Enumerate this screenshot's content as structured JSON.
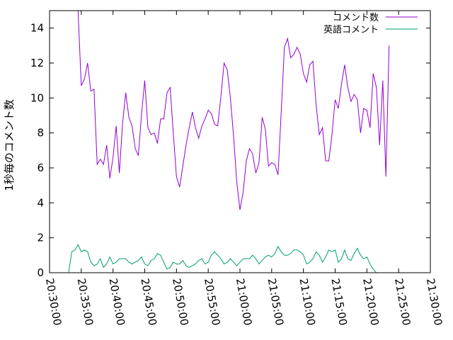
{
  "chart_data": {
    "type": "line",
    "title": "",
    "xlabel": "",
    "ylabel": "1秒毎のコメント数",
    "xlim": [
      "20:30:00",
      "21:30:00"
    ],
    "ylim": [
      0,
      15
    ],
    "yticks": [
      0,
      2,
      4,
      6,
      8,
      10,
      12,
      14
    ],
    "xticks": [
      "20:30:00",
      "20:35:00",
      "20:40:00",
      "20:45:00",
      "20:50:00",
      "20:55:00",
      "21:00:00",
      "21:05:00",
      "21:10:00",
      "21:15:00",
      "21:20:00",
      "21:25:00",
      "21:30:00"
    ],
    "grid": false,
    "legend_position": "top-right",
    "series": [
      {
        "name": "コメント数",
        "color": "#9400d3",
        "points": [
          [
            "20:34:30",
            15.0
          ],
          [
            "20:35:00",
            10.7
          ],
          [
            "20:35:30",
            11.1
          ],
          [
            "20:36:00",
            12.0
          ],
          [
            "20:36:30",
            10.4
          ],
          [
            "20:37:00",
            10.5
          ],
          [
            "20:37:30",
            6.2
          ],
          [
            "20:38:00",
            6.5
          ],
          [
            "20:38:30",
            6.2
          ],
          [
            "20:39:00",
            7.3
          ],
          [
            "20:39:30",
            5.4
          ],
          [
            "20:40:00",
            6.6
          ],
          [
            "20:40:30",
            8.4
          ],
          [
            "20:41:00",
            5.7
          ],
          [
            "20:41:30",
            8.5
          ],
          [
            "20:42:00",
            10.3
          ],
          [
            "20:42:30",
            8.9
          ],
          [
            "20:43:00",
            8.4
          ],
          [
            "20:43:30",
            7.1
          ],
          [
            "20:44:00",
            6.7
          ],
          [
            "20:44:30",
            9.1
          ],
          [
            "20:45:00",
            11.0
          ],
          [
            "20:45:30",
            8.3
          ],
          [
            "20:46:00",
            7.9
          ],
          [
            "20:46:30",
            8.0
          ],
          [
            "20:47:00",
            7.4
          ],
          [
            "20:47:30",
            8.8
          ],
          [
            "20:48:00",
            8.8
          ],
          [
            "20:48:30",
            10.3
          ],
          [
            "20:49:00",
            10.6
          ],
          [
            "20:49:30",
            8.0
          ],
          [
            "20:50:00",
            5.5
          ],
          [
            "20:50:30",
            4.9
          ],
          [
            "20:51:00",
            6.1
          ],
          [
            "20:51:30",
            7.3
          ],
          [
            "20:52:00",
            8.3
          ],
          [
            "20:52:30",
            9.2
          ],
          [
            "20:53:00",
            8.3
          ],
          [
            "20:53:30",
            7.7
          ],
          [
            "20:54:00",
            8.4
          ],
          [
            "20:54:30",
            8.8
          ],
          [
            "20:55:00",
            9.3
          ],
          [
            "20:55:30",
            9.1
          ],
          [
            "20:56:00",
            8.5
          ],
          [
            "20:56:30",
            8.4
          ],
          [
            "20:57:00",
            10.1
          ],
          [
            "20:57:30",
            12.0
          ],
          [
            "20:58:00",
            11.6
          ],
          [
            "20:58:30",
            10.0
          ],
          [
            "20:59:00",
            7.8
          ],
          [
            "20:59:30",
            5.2
          ],
          [
            "21:00:00",
            3.6
          ],
          [
            "21:00:30",
            4.6
          ],
          [
            "21:01:00",
            6.4
          ],
          [
            "21:01:30",
            7.1
          ],
          [
            "21:02:00",
            6.8
          ],
          [
            "21:02:30",
            5.7
          ],
          [
            "21:03:00",
            6.3
          ],
          [
            "21:03:30",
            8.9
          ],
          [
            "21:04:00",
            8.2
          ],
          [
            "21:04:30",
            6.1
          ],
          [
            "21:05:00",
            6.3
          ],
          [
            "21:05:30",
            6.2
          ],
          [
            "21:06:00",
            5.6
          ],
          [
            "21:06:30",
            9.2
          ],
          [
            "21:07:00",
            12.9
          ],
          [
            "21:07:30",
            13.4
          ],
          [
            "21:08:00",
            12.3
          ],
          [
            "21:08:30",
            12.5
          ],
          [
            "21:09:00",
            12.9
          ],
          [
            "21:09:30",
            12.5
          ],
          [
            "21:10:00",
            11.4
          ],
          [
            "21:10:30",
            10.9
          ],
          [
            "21:11:00",
            11.9
          ],
          [
            "21:11:30",
            12.1
          ],
          [
            "21:12:00",
            9.6
          ],
          [
            "21:12:30",
            7.9
          ],
          [
            "21:13:00",
            8.3
          ],
          [
            "21:13:30",
            6.4
          ],
          [
            "21:14:00",
            6.4
          ],
          [
            "21:14:30",
            7.9
          ],
          [
            "21:15:00",
            9.9
          ],
          [
            "21:15:30",
            9.4
          ],
          [
            "21:16:00",
            10.8
          ],
          [
            "21:16:30",
            11.9
          ],
          [
            "21:17:00",
            10.6
          ],
          [
            "21:17:30",
            9.8
          ],
          [
            "21:18:00",
            10.2
          ],
          [
            "21:18:30",
            9.9
          ],
          [
            "21:19:00",
            8.0
          ],
          [
            "21:19:30",
            9.4
          ],
          [
            "21:20:00",
            9.3
          ],
          [
            "21:20:30",
            8.3
          ],
          [
            "21:21:00",
            11.4
          ],
          [
            "21:21:30",
            10.6
          ],
          [
            "21:22:00",
            7.3
          ],
          [
            "21:22:30",
            11.0
          ],
          [
            "21:23:00",
            5.5
          ],
          [
            "21:23:30",
            13.0
          ]
        ]
      },
      {
        "name": "英語コメント",
        "color": "#009e73",
        "points": [
          [
            "20:32:00",
            0.0
          ],
          [
            "20:33:00",
            0.0
          ],
          [
            "20:33:30",
            1.2
          ],
          [
            "20:34:00",
            1.3
          ],
          [
            "20:34:30",
            1.6
          ],
          [
            "20:35:00",
            1.2
          ],
          [
            "20:35:30",
            1.3
          ],
          [
            "20:36:00",
            1.2
          ],
          [
            "20:36:30",
            0.6
          ],
          [
            "20:37:00",
            0.4
          ],
          [
            "20:37:30",
            0.5
          ],
          [
            "20:38:00",
            0.8
          ],
          [
            "20:38:30",
            0.3
          ],
          [
            "20:39:00",
            0.5
          ],
          [
            "20:39:30",
            0.9
          ],
          [
            "20:40:00",
            0.5
          ],
          [
            "20:40:30",
            0.6
          ],
          [
            "20:41:00",
            0.8
          ],
          [
            "20:41:30",
            0.8
          ],
          [
            "20:42:00",
            0.8
          ],
          [
            "20:42:30",
            0.6
          ],
          [
            "20:43:00",
            0.5
          ],
          [
            "20:43:30",
            0.6
          ],
          [
            "20:44:00",
            0.7
          ],
          [
            "20:44:30",
            0.9
          ],
          [
            "20:45:00",
            0.5
          ],
          [
            "20:45:30",
            0.4
          ],
          [
            "20:46:00",
            0.7
          ],
          [
            "20:46:30",
            0.8
          ],
          [
            "20:47:00",
            1.1
          ],
          [
            "20:47:30",
            1.0
          ],
          [
            "20:48:00",
            0.6
          ],
          [
            "20:48:30",
            0.2
          ],
          [
            "20:49:00",
            0.3
          ],
          [
            "20:49:30",
            0.6
          ],
          [
            "20:50:00",
            0.5
          ],
          [
            "20:50:30",
            0.5
          ],
          [
            "20:51:00",
            0.7
          ],
          [
            "20:51:30",
            0.4
          ],
          [
            "20:52:00",
            0.3
          ],
          [
            "20:52:30",
            0.4
          ],
          [
            "20:53:00",
            0.5
          ],
          [
            "20:53:30",
            0.7
          ],
          [
            "20:54:00",
            0.8
          ],
          [
            "20:54:30",
            0.5
          ],
          [
            "20:55:00",
            0.6
          ],
          [
            "20:55:30",
            1.0
          ],
          [
            "20:56:00",
            1.2
          ],
          [
            "20:56:30",
            1.0
          ],
          [
            "20:57:00",
            0.8
          ],
          [
            "20:57:30",
            0.5
          ],
          [
            "20:58:00",
            0.6
          ],
          [
            "20:58:30",
            0.8
          ],
          [
            "20:59:00",
            0.6
          ],
          [
            "20:59:30",
            0.4
          ],
          [
            "21:00:00",
            0.6
          ],
          [
            "21:00:30",
            0.8
          ],
          [
            "21:01:00",
            0.8
          ],
          [
            "21:01:30",
            0.8
          ],
          [
            "21:02:00",
            1.0
          ],
          [
            "21:02:30",
            0.8
          ],
          [
            "21:03:00",
            0.5
          ],
          [
            "21:03:30",
            0.7
          ],
          [
            "21:04:00",
            0.9
          ],
          [
            "21:04:30",
            1.0
          ],
          [
            "21:05:00",
            0.9
          ],
          [
            "21:05:30",
            1.1
          ],
          [
            "21:06:00",
            1.5
          ],
          [
            "21:06:30",
            1.2
          ],
          [
            "21:07:00",
            1.0
          ],
          [
            "21:07:30",
            1.0
          ],
          [
            "21:08:00",
            1.1
          ],
          [
            "21:08:30",
            1.3
          ],
          [
            "21:09:00",
            1.3
          ],
          [
            "21:09:30",
            1.2
          ],
          [
            "21:10:00",
            1.0
          ],
          [
            "21:10:30",
            0.5
          ],
          [
            "21:11:00",
            0.6
          ],
          [
            "21:11:30",
            0.8
          ],
          [
            "21:12:00",
            1.2
          ],
          [
            "21:12:30",
            1.0
          ],
          [
            "21:13:00",
            0.6
          ],
          [
            "21:13:30",
            0.9
          ],
          [
            "21:14:00",
            1.3
          ],
          [
            "21:14:30",
            1.2
          ],
          [
            "21:15:00",
            1.3
          ],
          [
            "21:15:30",
            0.6
          ],
          [
            "21:16:00",
            0.8
          ],
          [
            "21:16:30",
            1.3
          ],
          [
            "21:17:00",
            0.8
          ],
          [
            "21:17:30",
            0.7
          ],
          [
            "21:18:00",
            1.1
          ],
          [
            "21:18:30",
            1.4
          ],
          [
            "21:19:00",
            1.0
          ],
          [
            "21:19:30",
            0.8
          ],
          [
            "21:20:00",
            0.9
          ],
          [
            "21:20:30",
            0.5
          ],
          [
            "21:21:00",
            0.2
          ],
          [
            "21:21:30",
            0.0
          ]
        ]
      }
    ]
  }
}
